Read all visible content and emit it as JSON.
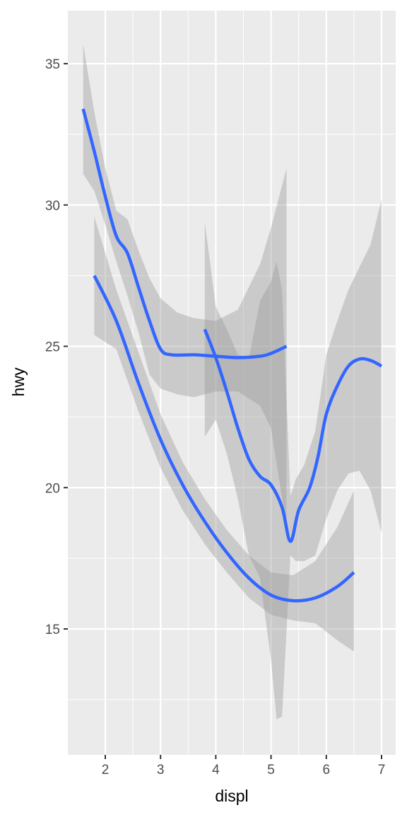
{
  "chart_data": {
    "type": "line",
    "title": "",
    "xlabel": "displ",
    "ylabel": "hwy",
    "xlim": [
      1.33,
      7.0
    ],
    "ylim": [
      10.6,
      36.8
    ],
    "x_ticks": [
      2,
      3,
      4,
      5,
      6,
      7
    ],
    "y_ticks": [
      15,
      20,
      25,
      30,
      35
    ],
    "grid": true,
    "legend": "none",
    "colors": {
      "line": "#3366ff",
      "ribbon": "#999999",
      "panel": "#ebebeb",
      "grid": "#ffffff"
    },
    "series": [
      {
        "values": [
          [
            1.6,
            33.4
          ],
          [
            1.8,
            31.9
          ],
          [
            2.0,
            30.3
          ],
          [
            2.2,
            28.9
          ],
          [
            2.4,
            28.3
          ],
          [
            2.6,
            27.1
          ],
          [
            2.8,
            25.9
          ],
          [
            3.0,
            24.9
          ],
          [
            3.2,
            24.7
          ],
          [
            3.6,
            24.7
          ],
          [
            4.0,
            24.65
          ],
          [
            4.4,
            24.6
          ],
          [
            4.8,
            24.65
          ],
          [
            5.0,
            24.75
          ],
          [
            5.28,
            25.0
          ]
        ],
        "ribbon": [
          [
            1.6,
            31.1,
            35.7
          ],
          [
            1.8,
            30.5,
            33.3
          ],
          [
            2.0,
            29.3,
            31.3
          ],
          [
            2.2,
            28.0,
            29.8
          ],
          [
            2.4,
            26.8,
            29.5
          ],
          [
            2.6,
            25.5,
            28.4
          ],
          [
            2.8,
            24.0,
            27.4
          ],
          [
            3.0,
            23.5,
            26.7
          ],
          [
            3.3,
            23.3,
            26.2
          ],
          [
            3.6,
            23.2,
            26.0
          ],
          [
            4.0,
            23.4,
            25.9
          ],
          [
            4.4,
            23.4,
            26.3
          ],
          [
            4.8,
            22.9,
            27.9
          ],
          [
            5.0,
            22.1,
            29.2
          ],
          [
            5.28,
            18.6,
            31.3
          ]
        ]
      },
      {
        "values": [
          [
            3.8,
            25.6
          ],
          [
            4.0,
            24.6
          ],
          [
            4.2,
            23.4
          ],
          [
            4.4,
            22.1
          ],
          [
            4.6,
            21.0
          ],
          [
            4.8,
            20.4
          ],
          [
            5.0,
            20.1
          ],
          [
            5.2,
            19.3
          ],
          [
            5.35,
            18.1
          ],
          [
            5.5,
            19.2
          ],
          [
            5.7,
            20.0
          ],
          [
            5.85,
            21.1
          ],
          [
            6.0,
            22.6
          ],
          [
            6.2,
            23.6
          ],
          [
            6.4,
            24.3
          ],
          [
            6.6,
            24.55
          ],
          [
            6.8,
            24.5
          ],
          [
            7.0,
            24.3
          ]
        ],
        "ribbon": [
          [
            3.8,
            21.8,
            29.4
          ],
          [
            4.0,
            22.4,
            26.4
          ],
          [
            4.2,
            21.2,
            25.6
          ],
          [
            4.4,
            19.6,
            24.7
          ],
          [
            4.6,
            17.6,
            24.6
          ],
          [
            4.8,
            16.8,
            26.6
          ],
          [
            5.0,
            13.9,
            27.3
          ],
          [
            5.1,
            11.8,
            28.0
          ],
          [
            5.2,
            11.9,
            27.0
          ],
          [
            5.35,
            17.6,
            19.7
          ],
          [
            5.45,
            17.4,
            20.3
          ],
          [
            5.6,
            17.4,
            20.8
          ],
          [
            5.8,
            17.6,
            22.0
          ],
          [
            6.0,
            18.9,
            24.7
          ],
          [
            6.2,
            19.9,
            25.9
          ],
          [
            6.4,
            20.5,
            27.0
          ],
          [
            6.6,
            20.6,
            27.8
          ],
          [
            6.8,
            19.9,
            28.6
          ],
          [
            7.0,
            18.4,
            30.2
          ]
        ]
      },
      {
        "values": [
          [
            1.8,
            27.5
          ],
          [
            2.2,
            25.9
          ],
          [
            2.6,
            23.7
          ],
          [
            3.0,
            21.7
          ],
          [
            3.4,
            20.1
          ],
          [
            3.8,
            18.8
          ],
          [
            4.2,
            17.7
          ],
          [
            4.6,
            16.8
          ],
          [
            5.0,
            16.2
          ],
          [
            5.4,
            16.0
          ],
          [
            5.8,
            16.1
          ],
          [
            6.2,
            16.5
          ],
          [
            6.5,
            17.0
          ]
        ],
        "ribbon": [
          [
            1.8,
            25.4,
            29.6
          ],
          [
            2.2,
            24.9,
            27.0
          ],
          [
            2.6,
            22.7,
            24.8
          ],
          [
            3.0,
            20.7,
            22.6
          ],
          [
            3.4,
            19.2,
            20.9
          ],
          [
            3.8,
            18.0,
            19.6
          ],
          [
            4.2,
            17.0,
            18.5
          ],
          [
            4.6,
            16.1,
            17.6
          ],
          [
            5.0,
            15.5,
            17.0
          ],
          [
            5.4,
            15.3,
            16.9
          ],
          [
            5.8,
            15.2,
            17.4
          ],
          [
            6.2,
            14.6,
            18.6
          ],
          [
            6.5,
            14.2,
            19.9
          ]
        ]
      }
    ]
  }
}
